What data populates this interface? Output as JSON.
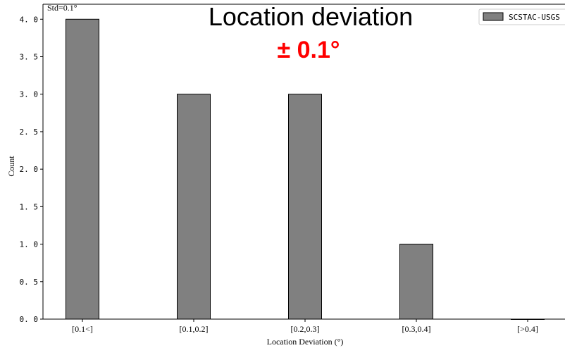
{
  "chart_data": {
    "type": "bar",
    "title": "Location deviation",
    "subtitle": "± 0.1°",
    "annotation": "Std=0.1°",
    "xlabel": "Location Deviation (°)",
    "ylabel": "Count",
    "categories": [
      "[0.1<]",
      "[0.1,0.2]",
      "[0.2,0.3]",
      "[0.3,0.4]",
      "[>0.4]"
    ],
    "series": [
      {
        "name": "SCSTAC-USGS",
        "values": [
          4,
          3,
          3,
          1,
          0
        ]
      }
    ],
    "ylim": [
      0,
      4.2
    ],
    "yticks": [
      0.0,
      0.5,
      1.0,
      1.5,
      2.0,
      2.5,
      3.0,
      3.5,
      4.0
    ],
    "grid": false,
    "legend": "top-right",
    "colors": {
      "bar_fill": "#808080",
      "bar_edge": "#000000",
      "subtitle": "#ff0000"
    }
  }
}
